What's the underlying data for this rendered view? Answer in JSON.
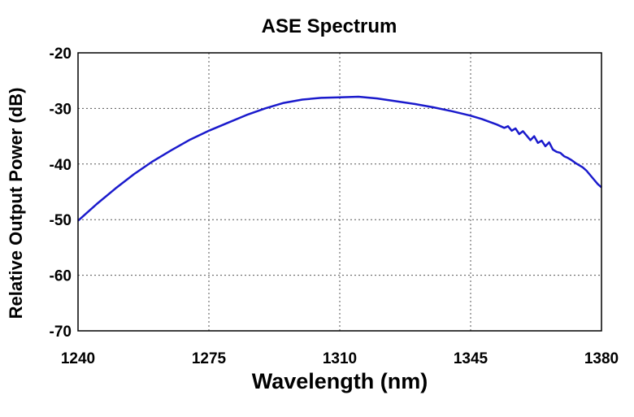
{
  "chart_data": {
    "type": "line",
    "title": "ASE Spectrum",
    "xlabel": "Wavelength (nm)",
    "ylabel": "Relative Output Power (dB)",
    "xlim": [
      1240,
      1380
    ],
    "ylim": [
      -70,
      -20
    ],
    "x_ticks": [
      1240,
      1275,
      1310,
      1345,
      1380
    ],
    "y_ticks": [
      -20,
      -30,
      -40,
      -50,
      -60,
      -70
    ],
    "x_tick_labels": [
      "1240",
      "1275",
      "1310",
      "1345",
      "1380"
    ],
    "y_tick_labels": [
      "-20",
      "-30",
      "-40",
      "-50",
      "-60",
      "-70"
    ],
    "grid": true,
    "legend": "none",
    "series": [
      {
        "color": "#1a1acc",
        "x": [
          1240,
          1245,
          1250,
          1255,
          1260,
          1265,
          1270,
          1275,
          1280,
          1285,
          1290,
          1295,
          1300,
          1305,
          1310,
          1315,
          1320,
          1325,
          1330,
          1335,
          1340,
          1345,
          1348,
          1350,
          1352,
          1354,
          1355,
          1356,
          1357,
          1358,
          1359,
          1360,
          1361,
          1362,
          1363,
          1364,
          1365,
          1366,
          1367,
          1368,
          1369,
          1370,
          1371,
          1372,
          1373,
          1374,
          1375,
          1376,
          1377,
          1378,
          1379,
          1380
        ],
        "y": [
          -50.2,
          -47.2,
          -44.4,
          -41.8,
          -39.5,
          -37.5,
          -35.6,
          -34.0,
          -32.6,
          -31.2,
          -30.0,
          -29.0,
          -28.4,
          -28.1,
          -28.0,
          -27.9,
          -28.2,
          -28.7,
          -29.2,
          -29.8,
          -30.5,
          -31.3,
          -31.9,
          -32.4,
          -32.9,
          -33.5,
          -33.2,
          -34.0,
          -33.6,
          -34.6,
          -34.1,
          -34.9,
          -35.7,
          -35.0,
          -36.2,
          -35.8,
          -36.8,
          -36.1,
          -37.4,
          -37.8,
          -38.0,
          -38.6,
          -38.9,
          -39.3,
          -39.8,
          -40.2,
          -40.6,
          -41.2,
          -42.0,
          -42.8,
          -43.6,
          -44.2
        ]
      }
    ]
  }
}
